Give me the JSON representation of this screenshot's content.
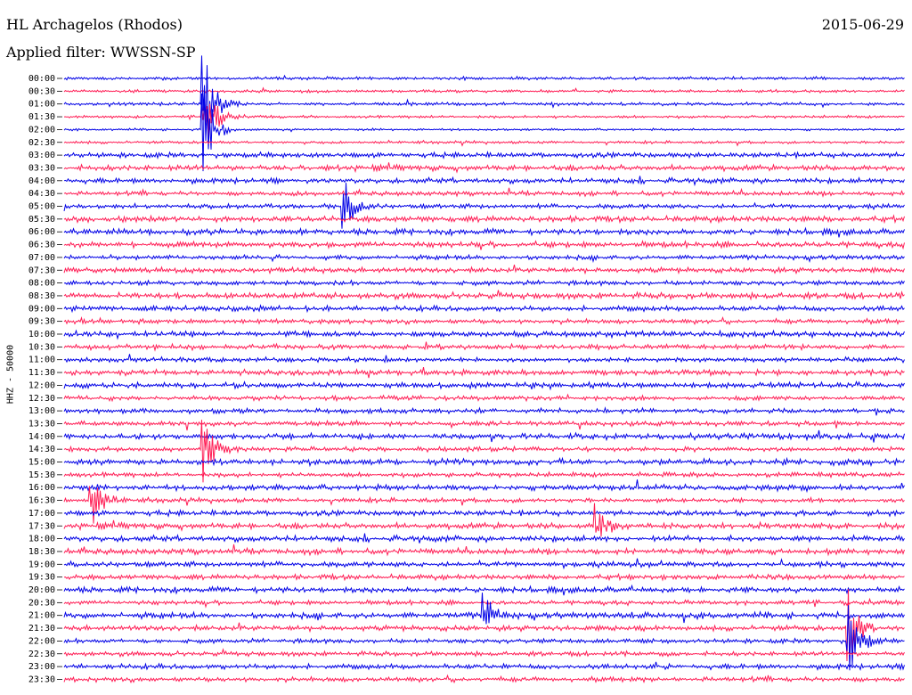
{
  "header": {
    "station": "HL Archagelos (Rhodos)",
    "date": "2015-06-29",
    "filter": "Applied filter: WWSSN-SP",
    "channel": "HHZ - 50000"
  },
  "colors": {
    "odd_trace": "#0000e6",
    "even_trace": "#ff1d55",
    "text": "#000000"
  },
  "chart_data": {
    "type": "line",
    "title": "HL Archagelos (Rhodos)",
    "subtitle": "Applied filter: WWSSN-SP",
    "date": "2015-06-29",
    "ylabel": "HHZ - 50000",
    "rows": [
      "00:00",
      "00:30",
      "01:00",
      "01:30",
      "02:00",
      "02:30",
      "03:00",
      "03:30",
      "04:00",
      "04:30",
      "05:00",
      "05:30",
      "06:00",
      "06:30",
      "07:00",
      "07:30",
      "08:00",
      "08:30",
      "09:00",
      "09:30",
      "10:00",
      "10:30",
      "11:00",
      "11:30",
      "12:00",
      "12:30",
      "13:00",
      "13:30",
      "14:00",
      "14:30",
      "15:00",
      "15:30",
      "16:00",
      "16:30",
      "17:00",
      "17:30",
      "18:00",
      "18:30",
      "19:00",
      "19:30",
      "20:00",
      "20:30",
      "21:00",
      "21:30",
      "22:00",
      "22:30",
      "23:00",
      "23:30"
    ],
    "row_minutes": 30,
    "notable_events": [
      {
        "row": "01:00",
        "minute": 5,
        "amplitude": 1.0
      },
      {
        "row": "01:30",
        "minute": 5,
        "amplitude": 0.9
      },
      {
        "row": "02:00",
        "minute": 5,
        "amplitude": 0.9
      },
      {
        "row": "05:00",
        "minute": 10,
        "amplitude": 0.5
      },
      {
        "row": "14:30",
        "minute": 5,
        "amplitude": 0.6
      },
      {
        "row": "16:30",
        "minute": 1,
        "amplitude": 0.5
      },
      {
        "row": "17:30",
        "minute": 19,
        "amplitude": 0.5
      },
      {
        "row": "21:00",
        "minute": 15,
        "amplitude": 0.4
      },
      {
        "row": "21:30",
        "minute": 28,
        "amplitude": 0.8
      },
      {
        "row": "22:00",
        "minute": 28,
        "amplitude": 0.9
      }
    ]
  }
}
